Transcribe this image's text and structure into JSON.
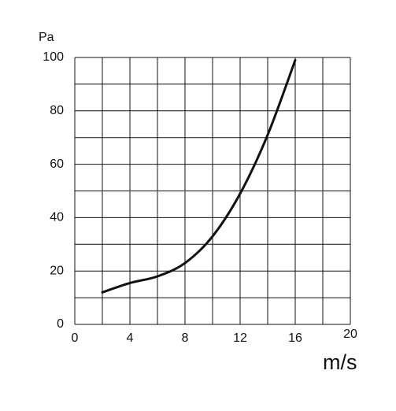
{
  "chart_data": {
    "type": "line",
    "x_label": "m/s",
    "y_label": "Pa",
    "x": [
      2,
      4,
      6,
      8,
      10,
      12,
      14,
      16
    ],
    "series": [
      {
        "color": "#111111",
        "values": [
          12,
          15.5,
          18,
          23,
          33,
          49,
          71,
          99
        ]
      }
    ],
    "xlim": [
      0,
      20
    ],
    "ylim": [
      0,
      100
    ],
    "xticks": [
      0,
      4,
      8,
      12,
      16,
      20
    ],
    "yticks": [
      0,
      20,
      40,
      60,
      80,
      100
    ],
    "xgrid": [
      0,
      2,
      4,
      6,
      8,
      10,
      12,
      14,
      16,
      18,
      20
    ],
    "ygrid": [
      0,
      10,
      20,
      30,
      40,
      50,
      60,
      70,
      80,
      90,
      100
    ],
    "grid": true
  }
}
